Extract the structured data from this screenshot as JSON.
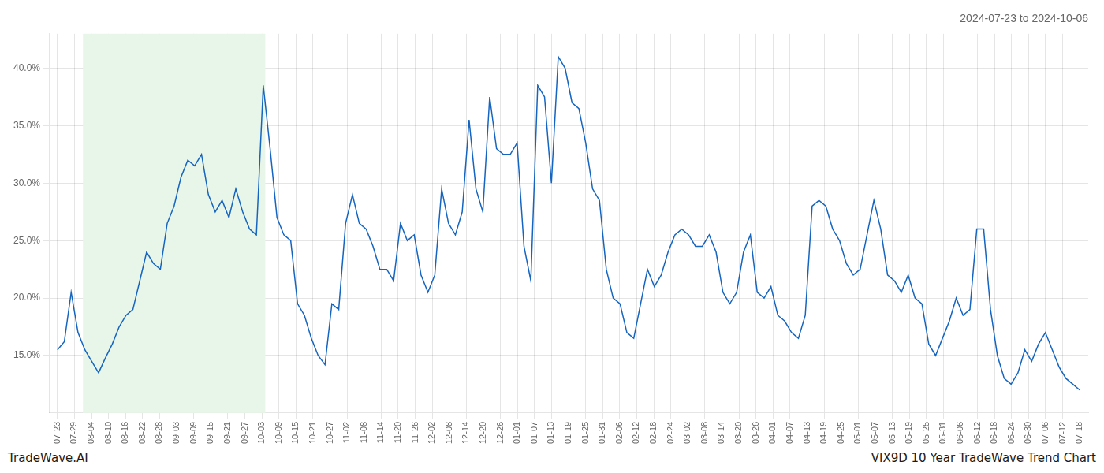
{
  "chart_data": {
    "type": "line",
    "title": "2024-07-23 to 2024-10-06",
    "annotations": [
      "TradeWave.AI",
      "VIX9D 10 Year TradeWave Trend Chart"
    ],
    "color": "#1565c0",
    "grid": true,
    "span": [
      1.5,
      12.2
    ],
    "span_color": "#e8f5e9",
    "xlim": [
      -0.5,
      60.5
    ],
    "xticks": [
      {
        "value": 0,
        "label": "07-23"
      },
      {
        "value": 1,
        "label": "07-29"
      },
      {
        "value": 2,
        "label": "08-04"
      },
      {
        "value": 3,
        "label": "08-10"
      },
      {
        "value": 4,
        "label": "08-16"
      },
      {
        "value": 5,
        "label": "08-22"
      },
      {
        "value": 6,
        "label": "08-28"
      },
      {
        "value": 7,
        "label": "09-03"
      },
      {
        "value": 8,
        "label": "09-09"
      },
      {
        "value": 9,
        "label": "09-15"
      },
      {
        "value": 10,
        "label": "09-21"
      },
      {
        "value": 11,
        "label": "09-27"
      },
      {
        "value": 12,
        "label": "10-03"
      },
      {
        "value": 13,
        "label": "10-09"
      },
      {
        "value": 14,
        "label": "10-15"
      },
      {
        "value": 15,
        "label": "10-21"
      },
      {
        "value": 16,
        "label": "10-27"
      },
      {
        "value": 17,
        "label": "11-02"
      },
      {
        "value": 18,
        "label": "11-08"
      },
      {
        "value": 19,
        "label": "11-14"
      },
      {
        "value": 20,
        "label": "11-20"
      },
      {
        "value": 21,
        "label": "11-26"
      },
      {
        "value": 22,
        "label": "12-02"
      },
      {
        "value": 23,
        "label": "12-08"
      },
      {
        "value": 24,
        "label": "12-14"
      },
      {
        "value": 25,
        "label": "12-20"
      },
      {
        "value": 26,
        "label": "12-26"
      },
      {
        "value": 27,
        "label": "01-01"
      },
      {
        "value": 28,
        "label": "01-07"
      },
      {
        "value": 29,
        "label": "01-13"
      },
      {
        "value": 30,
        "label": "01-19"
      },
      {
        "value": 31,
        "label": "01-25"
      },
      {
        "value": 32,
        "label": "01-31"
      },
      {
        "value": 33,
        "label": "02-06"
      },
      {
        "value": 34,
        "label": "02-12"
      },
      {
        "value": 35,
        "label": "02-18"
      },
      {
        "value": 36,
        "label": "02-24"
      },
      {
        "value": 37,
        "label": "03-02"
      },
      {
        "value": 38,
        "label": "03-08"
      },
      {
        "value": 39,
        "label": "03-14"
      },
      {
        "value": 40,
        "label": "03-20"
      },
      {
        "value": 41,
        "label": "03-26"
      },
      {
        "value": 42,
        "label": "04-01"
      },
      {
        "value": 43,
        "label": "04-07"
      },
      {
        "value": 44,
        "label": "04-13"
      },
      {
        "value": 45,
        "label": "04-19"
      },
      {
        "value": 46,
        "label": "04-25"
      },
      {
        "value": 47,
        "label": "05-01"
      },
      {
        "value": 48,
        "label": "05-07"
      },
      {
        "value": 49,
        "label": "05-13"
      },
      {
        "value": 50,
        "label": "05-19"
      },
      {
        "value": 51,
        "label": "05-25"
      },
      {
        "value": 52,
        "label": "05-31"
      },
      {
        "value": 53,
        "label": "06-06"
      },
      {
        "value": 54,
        "label": "06-12"
      },
      {
        "value": 55,
        "label": "06-18"
      },
      {
        "value": 56,
        "label": "06-24"
      },
      {
        "value": 57,
        "label": "06-30"
      },
      {
        "value": 58,
        "label": "07-06"
      },
      {
        "value": 59,
        "label": "07-12"
      },
      {
        "value": 60,
        "label": "07-18"
      }
    ],
    "ylim": [
      10,
      43
    ],
    "yticks": [
      {
        "value": 15.0,
        "label": "15.0%"
      },
      {
        "value": 20.0,
        "label": "20.0%"
      },
      {
        "value": 25.0,
        "label": "25.0%"
      },
      {
        "value": 30.0,
        "label": "30.0%"
      },
      {
        "value": 35.0,
        "label": "35.0%"
      },
      {
        "value": 40.0,
        "label": "40.0%"
      }
    ],
    "x": [
      0,
      0.4027,
      0.8054,
      1.2081,
      1.6107,
      2.0134,
      2.4161,
      2.8188,
      3.2215,
      3.6242,
      4.0268,
      4.4295,
      4.8322,
      5.2349,
      5.6376,
      6.0403,
      6.443,
      6.8456,
      7.2483,
      7.651,
      8.0537,
      8.4564,
      8.8591,
      9.2617,
      9.6644,
      10.0671,
      10.4698,
      10.8725,
      11.2752,
      11.6779,
      12.0805,
      12.4832,
      12.8859,
      13.2886,
      13.6913,
      14.094,
      14.4966,
      14.8993,
      15.302,
      15.7047,
      16.1074,
      16.5101,
      16.9128,
      17.3154,
      17.7181,
      18.1208,
      18.5235,
      18.9262,
      19.3289,
      19.7315,
      20.1342,
      20.5369,
      20.9396,
      21.3423,
      21.745,
      22.1477,
      22.5503,
      22.953,
      23.3557,
      23.7584,
      24.1611,
      24.5638,
      24.9664,
      25.3691,
      25.7718,
      26.1745,
      26.5772,
      26.9799,
      27.3826,
      27.7852,
      28.1879,
      28.5906,
      28.9933,
      29.396,
      29.7987,
      30.2013,
      30.604,
      31.0067,
      31.4094,
      31.8121,
      32.2148,
      32.6174,
      33.0201,
      33.4228,
      33.8255,
      34.2282,
      34.6309,
      35.0336,
      35.4362,
      35.8389,
      36.2416,
      36.6443,
      37.047,
      37.4497,
      37.8523,
      38.255,
      38.6577,
      39.0604,
      39.4631,
      39.8658,
      40.2685,
      40.6711,
      41.0738,
      41.4765,
      41.8792,
      42.2819,
      42.6846,
      43.0872,
      43.4899,
      43.8926,
      44.2953,
      44.698,
      45.1007,
      45.5034,
      45.906,
      46.3087,
      46.7114,
      47.1141,
      47.5168,
      47.9195,
      48.3221,
      48.7248,
      49.1275,
      49.5302,
      49.9329,
      50.3356,
      50.7383,
      51.1409,
      51.5436,
      51.9463,
      52.349,
      52.7517,
      53.1544,
      53.557,
      53.9597,
      54.3624,
      54.7651,
      55.1678,
      55.5705,
      55.9732,
      56.3758,
      56.7785,
      57.1812,
      57.5839,
      57.9866,
      58.3893,
      58.7919,
      59.1946,
      59.5973,
      60
    ],
    "values": [
      15.5,
      16.2,
      20.5,
      17.0,
      15.5,
      14.5,
      13.5,
      14.8,
      16.0,
      17.5,
      18.5,
      19.0,
      21.5,
      24.0,
      23.0,
      22.5,
      26.5,
      28.0,
      30.5,
      32.0,
      31.5,
      32.5,
      29.0,
      27.5,
      28.5,
      27.0,
      29.5,
      27.5,
      26.0,
      25.5,
      38.5,
      33.0,
      27.0,
      25.5,
      25.0,
      19.5,
      18.5,
      16.5,
      15.0,
      14.2,
      19.5,
      19.0,
      26.5,
      29.0,
      26.5,
      26.0,
      24.5,
      22.5,
      22.5,
      21.5,
      26.5,
      25.0,
      25.5,
      22.0,
      20.5,
      22.0,
      29.5,
      26.5,
      25.5,
      27.5,
      35.5,
      29.5,
      27.5,
      37.5,
      33.0,
      32.5,
      32.5,
      33.5,
      24.5,
      21.5,
      38.5,
      37.5,
      30.0,
      41.0,
      40.0,
      37.0,
      36.5,
      33.5,
      29.5,
      28.5,
      22.5,
      20.0,
      19.5,
      17.0,
      16.5,
      19.5,
      22.5,
      21.0,
      22.0,
      24.0,
      25.5,
      26.0,
      25.5,
      24.5,
      24.5,
      25.5,
      24.0,
      20.5,
      19.5,
      20.5,
      24.0,
      25.5,
      20.5,
      20.0,
      21.0,
      18.5,
      18.0,
      17.0,
      16.5,
      18.5,
      28.0,
      28.5,
      28.0,
      26.0,
      25.0,
      23.0,
      22.0,
      22.5,
      25.5,
      28.5,
      26.0,
      22.0,
      21.5,
      20.5,
      22.0,
      20.0,
      19.5,
      16.0,
      15.0,
      16.5,
      18.0,
      20.0,
      18.5,
      19.0,
      26.0,
      26.0,
      19.0,
      15.0,
      13.0,
      12.5,
      13.5,
      15.5,
      14.5,
      16.0,
      17.0,
      15.5,
      14.0,
      13.0,
      12.5,
      12.0
    ]
  }
}
